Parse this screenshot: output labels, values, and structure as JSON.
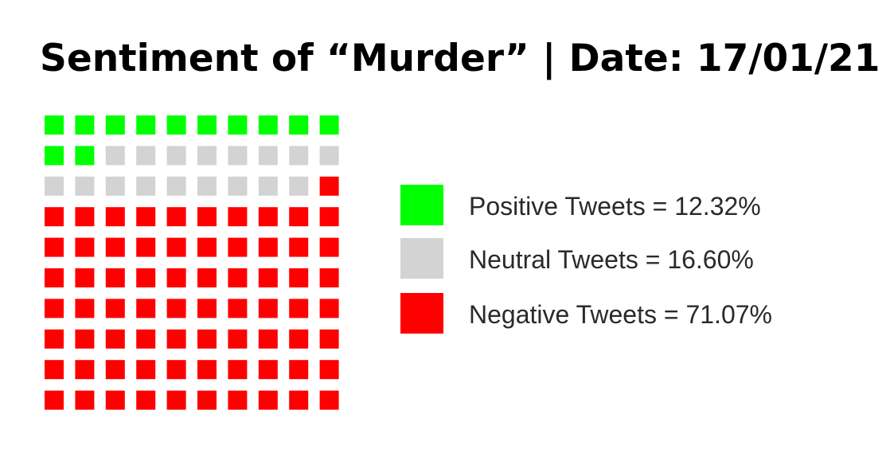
{
  "title": "Sentiment of “Murder” | Date: 17/01/21",
  "chart_data": {
    "type": "waffle",
    "title": "Sentiment of “Murder” | Date: 17/01/21",
    "grid": {
      "rows": 10,
      "cols": 10
    },
    "fill_order": "top-to-bottom, left-to-right",
    "categories": [
      {
        "name": "Positive",
        "count": 12,
        "color": "#00ff00",
        "label": "Positive Tweets = 12.32%"
      },
      {
        "name": "Neutral",
        "count": 17,
        "color": "#d3d3d3",
        "label": "Neutral Tweets = 16.60%"
      },
      {
        "name": "Negative",
        "count": 71,
        "color": "#ff0000",
        "label": "Negative Tweets = 71.07%"
      }
    ],
    "percentages": [
      12.32,
      16.6,
      71.07
    ],
    "legend_position": "right"
  }
}
